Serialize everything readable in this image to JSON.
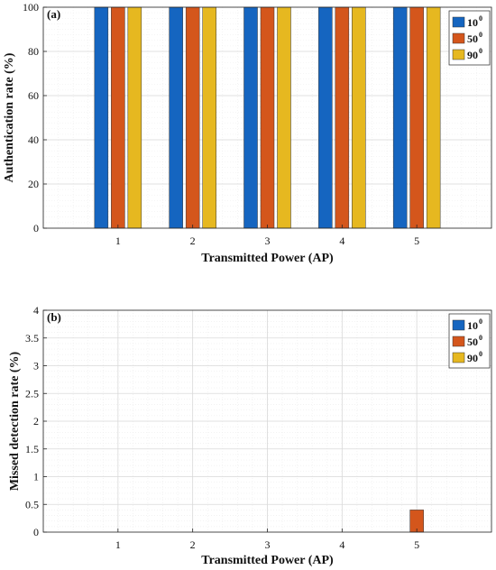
{
  "colors": {
    "s10": "#1565c0",
    "s50": "#d4561c",
    "s90": "#e6b820"
  },
  "chart_data": [
    {
      "type": "bar",
      "panel_label": "(a)",
      "categories": [
        "1",
        "2",
        "3",
        "4",
        "5"
      ],
      "series": [
        {
          "name": "10",
          "sup": "0",
          "values": [
            100,
            100,
            100,
            100,
            100
          ]
        },
        {
          "name": "50",
          "sup": "0",
          "values": [
            100,
            100,
            100,
            100,
            100
          ]
        },
        {
          "name": "90",
          "sup": "0",
          "values": [
            100,
            100,
            100,
            100,
            100
          ]
        }
      ],
      "xlabel": "Transmitted Power (AP)",
      "ylabel": "Authentication rate (%)",
      "ylim": [
        0,
        100
      ],
      "xlim": [
        0,
        6
      ],
      "yticks": [
        0,
        20,
        40,
        60,
        80,
        100
      ],
      "ytick_labels": [
        "0",
        "20",
        "40",
        "60",
        "80",
        "100"
      ],
      "grid": true,
      "legend": "top-right"
    },
    {
      "type": "bar",
      "panel_label": "(b)",
      "categories": [
        "1",
        "2",
        "3",
        "4",
        "5"
      ],
      "series": [
        {
          "name": "10",
          "sup": "0",
          "values": [
            0,
            0,
            0,
            0,
            0
          ]
        },
        {
          "name": "50",
          "sup": "0",
          "values": [
            0,
            0,
            0,
            0,
            0.4
          ]
        },
        {
          "name": "90",
          "sup": "0",
          "values": [
            0,
            0,
            0,
            0,
            0
          ]
        }
      ],
      "xlabel": "Transmitted Power (AP)",
      "ylabel": "Missed detection rate (%)",
      "ylim": [
        0,
        4
      ],
      "xlim": [
        0,
        6
      ],
      "yticks": [
        0,
        0.5,
        1,
        1.5,
        2,
        2.5,
        3,
        3.5,
        4
      ],
      "ytick_labels": [
        "0",
        "0.5",
        "1",
        "1.5",
        "2",
        "2.5",
        "3",
        "3.5",
        "4"
      ],
      "grid": true,
      "legend": "top-right"
    }
  ]
}
